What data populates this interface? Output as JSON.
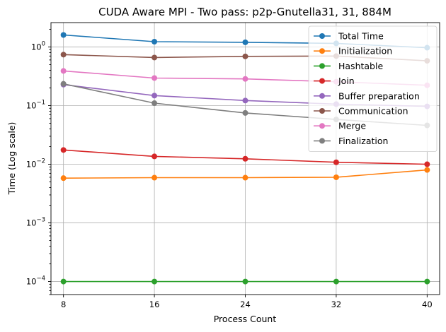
{
  "chart_data": {
    "type": "line",
    "title": "CUDA Aware MPI - Two pass: p2p-Gnutella31, 31, 884M",
    "xlabel": "Process Count",
    "ylabel": "Time (Log scale)",
    "yscale": "log",
    "x": [
      8,
      16,
      24,
      32,
      40
    ],
    "x_tick_labels": [
      "8",
      "16",
      "24",
      "32",
      "40"
    ],
    "y_tick_labels": [
      {
        "value": 0.0001,
        "base": "10",
        "exp": "−4"
      },
      {
        "value": 0.001,
        "base": "10",
        "exp": "−3"
      },
      {
        "value": 0.01,
        "base": "10",
        "exp": "−2"
      },
      {
        "value": 0.1,
        "base": "10",
        "exp": "−1"
      },
      {
        "value": 1,
        "base": "10",
        "exp": "0"
      }
    ],
    "xlim": [
      6.9,
      41.1
    ],
    "ylim": [
      6e-05,
      2.6
    ],
    "grid": true,
    "legend_position": "top-right",
    "series": [
      {
        "name": "Total Time",
        "color": "#1f77b4",
        "values": [
          1.6,
          1.23,
          1.2,
          1.15,
          0.97
        ]
      },
      {
        "name": "Initialization",
        "color": "#ff7f0e",
        "values": [
          0.0058,
          0.0059,
          0.0059,
          0.006,
          0.008
        ]
      },
      {
        "name": "Hashtable",
        "color": "#2ca02c",
        "values": [
          0.0001,
          0.0001,
          0.0001,
          0.0001,
          0.0001
        ]
      },
      {
        "name": "Join",
        "color": "#d62728",
        "values": [
          0.0175,
          0.0136,
          0.0124,
          0.0108,
          0.01
        ]
      },
      {
        "name": "Buffer preparation",
        "color": "#9467bd",
        "values": [
          0.228,
          0.148,
          0.122,
          0.106,
          0.097
        ]
      },
      {
        "name": "Communication",
        "color": "#8c564b",
        "values": [
          0.74,
          0.66,
          0.69,
          0.7,
          0.58
        ]
      },
      {
        "name": "Merge",
        "color": "#e377c2",
        "values": [
          0.39,
          0.295,
          0.285,
          0.255,
          0.222
        ]
      },
      {
        "name": "Finalization",
        "color": "#7f7f7f",
        "values": [
          0.235,
          0.11,
          0.075,
          0.058,
          0.046
        ]
      }
    ]
  }
}
